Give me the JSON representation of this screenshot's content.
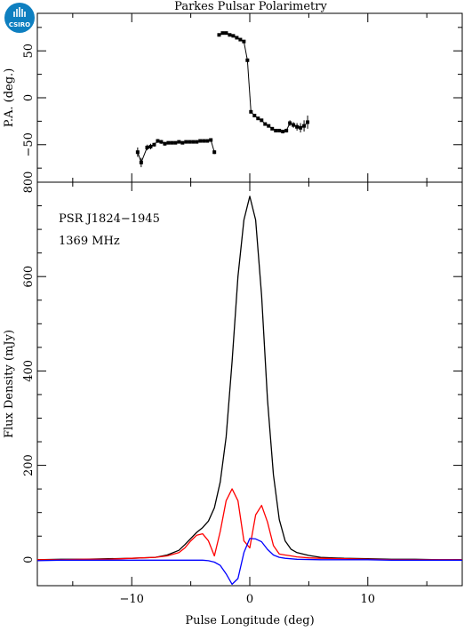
{
  "page": {
    "title": "Parkes Pulsar Polarimetry",
    "logo_text": "CSIRO",
    "logo_color": "#0e7fc0"
  },
  "chart_data": [
    {
      "panel": "position-angle",
      "type": "scatter",
      "ylabel": "P.A. (deg.)",
      "xlim": [
        -18,
        18
      ],
      "ylim": [
        -90,
        90
      ],
      "yticks": [
        -50,
        0,
        50
      ],
      "color": "#000000",
      "errorbars": true,
      "x": [
        -9.5,
        -9.2,
        -8.7,
        -8.4,
        -8.1,
        -7.8,
        -7.5,
        -7.2,
        -6.9,
        -6.6,
        -6.3,
        -6.0,
        -5.7,
        -5.4,
        -5.1,
        -4.8,
        -4.5,
        -4.2,
        -3.9,
        -3.6,
        -3.3,
        -3.0,
        -2.6,
        -2.3,
        -2.0,
        -1.7,
        -1.4,
        -1.1,
        -0.8,
        -0.5,
        -0.2,
        0.1,
        0.4,
        0.7,
        1.0,
        1.3,
        1.6,
        1.9,
        2.2,
        2.5,
        2.8,
        3.1,
        3.4,
        3.7,
        4.0,
        4.3,
        4.6,
        4.9
      ],
      "y": [
        -58,
        -69,
        -53,
        -52,
        -50,
        -46,
        -47,
        -49,
        -48,
        -48,
        -48,
        -47,
        -48,
        -47,
        -47,
        -47,
        -47,
        -46,
        -46,
        -46,
        -45,
        -58,
        67,
        69,
        69,
        67,
        66,
        64,
        62,
        60,
        40,
        -15,
        -19,
        -22,
        -24,
        -28,
        -30,
        -33,
        -35,
        -35,
        -36,
        -35,
        -27,
        -29,
        -31,
        -32,
        -30,
        -26
      ],
      "yerr": [
        5,
        5,
        3,
        3,
        2,
        2,
        2,
        2,
        1,
        1,
        1,
        1,
        1,
        1,
        1,
        1,
        1,
        1,
        1,
        1,
        1,
        2,
        1,
        1,
        1,
        1,
        1,
        1,
        1,
        1,
        1,
        1,
        1,
        1,
        1,
        1,
        1,
        1,
        1,
        1,
        2,
        2,
        3,
        3,
        4,
        5,
        6,
        7
      ]
    },
    {
      "panel": "profile",
      "type": "line",
      "xlabel": "Pulse Longitude (deg)",
      "ylabel": "Flux Density (mJy)",
      "xlim": [
        -18,
        18
      ],
      "ylim": [
        -55,
        800
      ],
      "xticks": [
        -10,
        0,
        10
      ],
      "yticks": [
        0,
        200,
        400,
        600,
        800
      ],
      "annotations": [
        "PSR J1824−1945",
        "1369 MHz"
      ],
      "series": [
        {
          "color": "#000000",
          "x": [
            -18,
            -16,
            -14,
            -12,
            -10,
            -8,
            -7,
            -6,
            -5.5,
            -5,
            -4.5,
            -4,
            -3.5,
            -3,
            -2.5,
            -2,
            -1.5,
            -1,
            -0.5,
            0,
            0.5,
            1,
            1.5,
            2,
            2.5,
            3,
            3.5,
            4,
            5,
            6,
            8,
            10,
            12,
            14,
            16,
            18
          ],
          "y": [
            0,
            1,
            1,
            2,
            3,
            5,
            10,
            20,
            32,
            45,
            58,
            68,
            82,
            110,
            165,
            260,
            420,
            600,
            720,
            770,
            720,
            560,
            340,
            180,
            85,
            40,
            22,
            15,
            9,
            5,
            3,
            2,
            1,
            1,
            0,
            0
          ]
        },
        {
          "color": "#ff0000",
          "x": [
            -18,
            -16,
            -14,
            -12,
            -10,
            -8,
            -7,
            -6,
            -5.5,
            -5,
            -4.5,
            -4,
            -3.5,
            -3,
            -2.5,
            -2,
            -1.5,
            -1,
            -0.5,
            0,
            0.5,
            1,
            1.5,
            2,
            2.5,
            3,
            3.5,
            4,
            5,
            6,
            8,
            10,
            12,
            14,
            16,
            18
          ],
          "y": [
            0,
            0,
            1,
            1,
            3,
            5,
            8,
            15,
            25,
            40,
            52,
            55,
            40,
            8,
            60,
            125,
            150,
            125,
            40,
            25,
            95,
            115,
            80,
            30,
            12,
            10,
            8,
            6,
            4,
            3,
            2,
            1,
            0,
            0,
            0,
            0
          ]
        },
        {
          "color": "#0000ff",
          "x": [
            -18,
            -16,
            -14,
            -12,
            -10,
            -8,
            -6,
            -5,
            -4,
            -3.5,
            -3,
            -2.5,
            -2,
            -1.5,
            -1,
            -0.5,
            0,
            0.5,
            1,
            1.5,
            2,
            2.5,
            3,
            4,
            6,
            8,
            10,
            12,
            14,
            16,
            18
          ],
          "y": [
            -2,
            -1,
            -1,
            -1,
            -1,
            -1,
            -1,
            -1,
            -1,
            -2,
            -5,
            -12,
            -30,
            -52,
            -40,
            15,
            45,
            44,
            38,
            22,
            10,
            5,
            3,
            1,
            0,
            0,
            0,
            -1,
            -1,
            -1,
            -1
          ]
        }
      ]
    }
  ]
}
